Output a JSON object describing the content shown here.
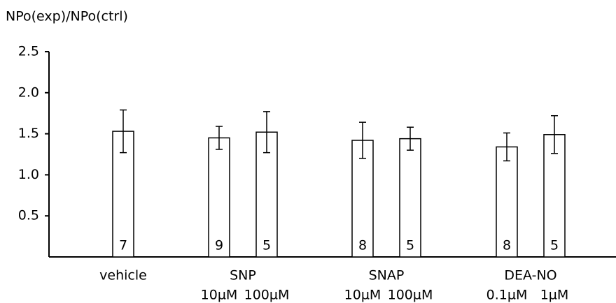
{
  "chart_data": {
    "type": "bar",
    "y_label": "NPo(exp)/NPo(ctrl)",
    "ylim": [
      0,
      2.5
    ],
    "yticks": [
      0.5,
      {
        "value": 1,
        "label": "1.0"
      },
      1.5,
      {
        "value": 2,
        "label": "2.0"
      },
      2.5
    ],
    "color": "#ffffff",
    "groups": [
      {
        "name": "vehicle",
        "bars": [
          {
            "label": null,
            "value": 1.53,
            "error": 0.26,
            "n": 7
          }
        ]
      },
      {
        "name": "SNP",
        "bars": [
          {
            "label": "10µM",
            "value": 1.45,
            "error": 0.14,
            "n": 9
          },
          {
            "label": "100µM",
            "value": 1.52,
            "error": 0.25,
            "n": 5
          }
        ]
      },
      {
        "name": "SNAP",
        "bars": [
          {
            "label": "10µM",
            "value": 1.42,
            "error": 0.22,
            "n": 8
          },
          {
            "label": "100µM",
            "value": 1.44,
            "error": 0.14,
            "n": 5
          }
        ]
      },
      {
        "name": "DEA-NO",
        "bars": [
          {
            "label": "0.1µM",
            "value": 1.34,
            "error": 0.17,
            "n": 8
          },
          {
            "label": "1µM",
            "value": 1.49,
            "error": 0.23,
            "n": 5
          }
        ]
      }
    ]
  }
}
